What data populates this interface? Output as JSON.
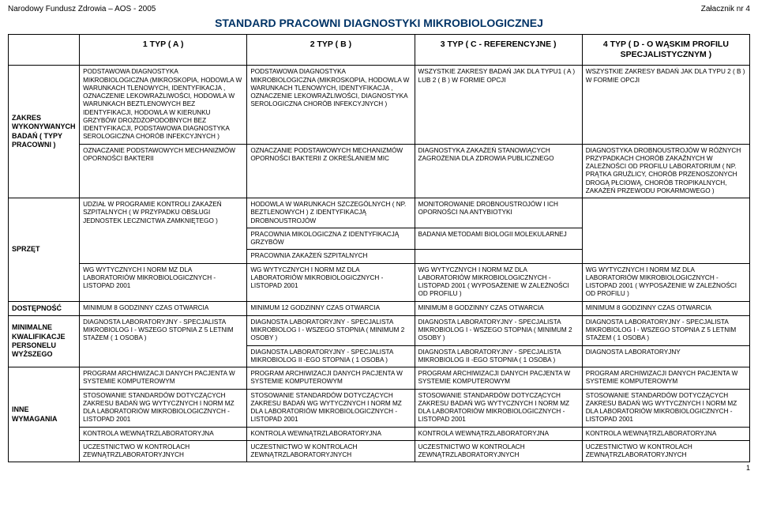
{
  "header_left": "Narodowy Fundusz Zdrowia – AOS   - 2005",
  "header_right": "Załacznik nr 4",
  "title": "STANDARD PRACOWNI DIAGNOSTYKI MIKROBIOLOGICZNEJ",
  "col_headers": [
    "1 TYP ( A )",
    "2 TYP ( B )",
    "3 TYP ( C - REFERENCYJNE )",
    "4 TYP ( D - O WĄSKIM PROFILU SPECJALISTYCZNYM )"
  ],
  "r0": {
    "c1": "PODSTAWOWA DIAGNOSTYKA MIKROBIOLOGICZNA (MIKROSKOPIA, HODOWLA W WARUNKACH TLENOWYCH, IDENTYFIKACJA , OZNACZENIE LEKOWRAŻLIWOŚCI, HODOWLA W WARUNKACH BEZTLENOWYCH BEZ IDENTYFIKACJI, HODOWLA W KIERUNKU GRZYBÓW DROŻDŻOPODOBNYCH BEZ IDENTYFIKACJI, PODSTAWOWA DIAGNOSTYKA SEROLOGICZNA CHORÓB INFEKCYJNYCH )",
    "c2": "PODSTAWOWA DIAGNOSTYKA MIKROBIOLOGICZNA (MIKROSKOPIA, HODOWLA W WARUNKACH TLENOWYCH, IDENTYFIKACJA , OZNACZENIE LEKOWRAŻLIWOŚCI, DIAGNOSTYKA SEROLOGICZNA CHORÓB INFEKCYJNYCH )",
    "c3": "WSZYSTKIE ZAKRESY BADAŃ JAK DLA TYPU1 ( A ) LUB 2 ( B ) W FORMIE OPCJI",
    "c4": "WSZYSTKIE ZAKRESY BADAŃ JAK DLA TYPU 2 ( B ) W FORMIE OPCJI"
  },
  "r1": {
    "label": "ZAKRES WYKONYWANYCH BADAŃ ( TYPY PRACOWNI )",
    "c1": "OZNACZANIE PODSTAWOWYCH MECHANIZMÓW OPORNOŚCI BAKTERII",
    "c2": "OZNACZANIE PODSTAWOWYCH MECHANIZMÓW OPORNOŚCI BAKTERII Z OKREŚLANIEM MIC",
    "c3": "DIAGNOSTYKA ZAKAŻEŃ STANOWIĄCYCH ZAGROŻENIA DLA ZDROWIA PUBLICZNEGO",
    "c4": "DIAGNOSTYKA DROBNOUSTROJÓW W RÓŻNYCH PRZYPADKACH CHORÓB ZAKAŹNYCH W ZALEŻNOŚCI OD PROFILU LABORATORIUM ( NP. PRĄTKA GRUŹLICY, CHORÓB PRZENOSZONYCH DROGĄ PŁCIOWĄ, CHORÓB TROPIKALNYCH, ZAKAŻEŃ PRZEWODU POKARMOWEGO )"
  },
  "r2": {
    "c1": "UDZIAŁ W PROGRAMIE KONTROLI ZAKAŻEŃ SZPITALNYCH ( W PRZYPADKU OBSŁUGI JEDNOSTEK LECZNICTWA ZAMKNIĘTEGO )",
    "c2": "HODOWLA W WARUNKACH SZCZEGÓLNYCH ( NP. BEZTLENOWYCH ) Z IDENTYFIKACJĄ DROBNOUSTROJÓW",
    "c3": "MONITOROWANIE DROBNOUSTROJÓW I ICH OPORNOŚCI NA ANTYBIOTYKI"
  },
  "r3": {
    "c2": "PRACOWNIA MIKOLOGICZNA Z IDENTYFIKACJĄ GRZYBÓW",
    "c3": "BADANIA METODAMI BIOLOGII MOLEKULARNEJ"
  },
  "r4": {
    "c2": "PRACOWNIA ZAKAŻEŃ SZPITALNYCH"
  },
  "r5": {
    "label": "SPRZĘT",
    "c1": "WG WYTYCZNYCH I NORM MZ DLA LABORATORIÓW MIKROBIOLOGICZNYCH - LISTOPAD 2001",
    "c2": "WG WYTYCZNYCH I NORM MZ DLA LABORATORIÓW MIKROBIOLOGICZNYCH - LISTOPAD 2001",
    "c3": "WG WYTYCZNYCH I NORM MZ DLA LABORATORIÓW MIKROBIOLOGICZNYCH - LISTOPAD 2001 ( WYPOSAŻENIE W ZALEŻNOŚCI OD PROFILU )",
    "c4": "WG WYTYCZNYCH I NORM MZ DLA LABORATORIÓW MIKROBIOLOGICZNYCH - LISTOPAD 2001 ( WYPOSAŻENIE W ZALEŻNOŚCI OD PROFILU )"
  },
  "r6": {
    "label": "DOSTĘPNOŚĆ",
    "c1": "MINIMUM 8 GODZINNY CZAS OTWARCIA",
    "c2": "MINIMUM 12 GODZINNY CZAS OTWARCIA",
    "c3": "MINIMUM 8 GODZINNY CZAS OTWARCIA",
    "c4": "MINIMUM 8 GODZINNY CZAS OTWARCIA"
  },
  "r7": {
    "label": "MINIMALNE KWALIFIKACJE PERSONELU WYŻSZEGO",
    "c1": "DIAGNOSTA LABORATORYJNY - SPECJALISTA MIKROBIOLOG I - WSZEGO STOPNIA Z 5 LETNIM STAŻEM ( 1 OSOBA )",
    "c2": "DIAGNOSTA LABORATORYJNY - SPECJALISTA MIKROBIOLOG I - WSZEGO STOPNIA ( MINIMUM 2 OSOBY )",
    "c3": "DIAGNOSTA LABORATORYJNY - SPECJALISTA MIKROBIOLOG I - WSZEGO STOPNIA ( MINIMUM 2 OSOBY )",
    "c4": "DIAGNOSTA LABORATORYJNY - SPECJALISTA MIKROBIOLOG I - WSZEGO STOPNIA Z 5 LETNIM STAŻEM ( 1 OSOBA )"
  },
  "r8": {
    "c2": "DIAGNOSTA LABORATORYJNY - SPECJALISTA MIKROBIOLOG II -EGO STOPNIA ( 1 OSOBA )",
    "c3": "DIAGNOSTA LABORATORYJNY - SPECJALISTA MIKROBIOLOG II -EGO STOPNIA ( 1 OSOBA )",
    "c4": "DIAGNOSTA LABORATORYJNY"
  },
  "r9": {
    "label": "INNE WYMAGANIA",
    "c1": "PROGRAM ARCHIWIZACJI DANYCH PACJENTA W SYSTEMIE KOMPUTEROWYM",
    "c2": "PROGRAM ARCHIWIZACJI DANYCH PACJENTA W SYSTEMIE KOMPUTEROWYM",
    "c3": "PROGRAM ARCHIWIZACJI DANYCH PACJENTA W SYSTEMIE KOMPUTEROWYM",
    "c4": "PROGRAM ARCHIWIZACJI DANYCH PACJENTA W SYSTEMIE KOMPUTEROWYM"
  },
  "r10": {
    "c1": "STOSOWANIE STANDARDÓW DOTYCZĄCYCH ZAKRESU BADAŃ WG WYTYCZNYCH I NORM MZ DLA LABORATORIÓW MIKROBIOLOGICZNYCH - LISTOPAD 2001",
    "c2": "STOSOWANIE STANDARDÓW DOTYCZĄCYCH ZAKRESU BADAŃ WG WYTYCZNYCH I NORM MZ DLA LABORATORIÓW MIKROBIOLOGICZNYCH - LISTOPAD 2001",
    "c3": "STOSOWANIE STANDARDÓW DOTYCZĄCYCH ZAKRESU BADAŃ WG WYTYCZNYCH I NORM MZ DLA LABORATORIÓW MIKROBIOLOGICZNYCH - LISTOPAD 2001",
    "c4": "STOSOWANIE STANDARDÓW DOTYCZĄCYCH ZAKRESU BADAŃ WG WYTYCZNYCH I NORM MZ DLA LABORATORIÓW MIKROBIOLOGICZNYCH - LISTOPAD 2001"
  },
  "r11": {
    "c1": "KONTROLA WEWNĄTRZLABORATORYJNA",
    "c2": "KONTROLA WEWNĄTRZLABORATORYJNA",
    "c3": "KONTROLA WEWNĄTRZLABORATORYJNA",
    "c4": "KONTROLA WEWNĄTRZLABORATORYJNA"
  },
  "r12": {
    "c1": "UCZESTNICTWO W KONTROLACH ZEWNĄTRZLABORATORYJNYCH",
    "c2": "UCZESTNICTWO W KONTROLACH ZEWNĄTRZLABORATORYJNYCH",
    "c3": "UCZESTNICTWO W KONTROLACH ZEWNĄTRZLABORATORYJNYCH",
    "c4": "UCZESTNICTWO W KONTROLACH ZEWNĄTRZLABORATORYJNYCH"
  },
  "page_num": "1"
}
